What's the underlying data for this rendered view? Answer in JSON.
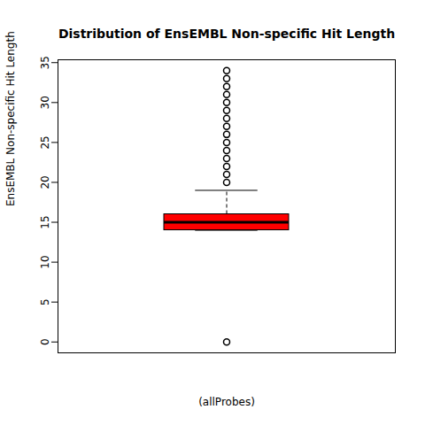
{
  "chart_data": {
    "type": "box",
    "title": "Distribution of EnsEMBL Non-specific Hit Length",
    "xlabel": "(allProbes)",
    "ylabel": "EnsEMBL Non-specific Hit Length",
    "boxes": [
      {
        "min": 14,
        "q1": 14,
        "median": 15,
        "q3": 16,
        "max": 19,
        "outliers": [
          0,
          20,
          21,
          22,
          23,
          24,
          25,
          26,
          27,
          28,
          29,
          30,
          31,
          32,
          33,
          34
        ]
      }
    ],
    "color": "#ff0000",
    "ylim": [
      -1.36,
      35.36
    ],
    "yticks": [
      0,
      5,
      10,
      15,
      20,
      25,
      30,
      35
    ],
    "tick_labels": "y"
  }
}
